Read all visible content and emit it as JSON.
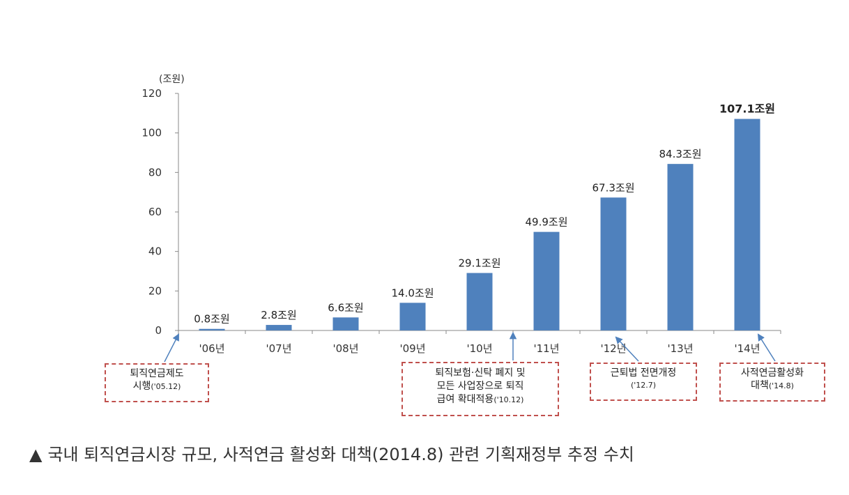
{
  "chart_data": {
    "type": "bar",
    "unit_label": "(조원)",
    "categories": [
      "'06년",
      "'07년",
      "'08년",
      "'09년",
      "'10년",
      "'11년",
      "'12년",
      "'13년",
      "'14년"
    ],
    "values": [
      0.8,
      2.8,
      6.6,
      14.0,
      29.1,
      49.9,
      67.3,
      84.3,
      107.1
    ],
    "data_labels": [
      "0.8조원",
      "2.8조원",
      "6.6조원",
      "14.0조원",
      "29.1조원",
      "49.9조원",
      "67.3조원",
      "84.3조원",
      "107.1조원"
    ],
    "yticks": [
      0,
      20,
      40,
      60,
      80,
      100,
      120
    ],
    "ylim": [
      0,
      120
    ],
    "bar_color": "#4f81bd",
    "annotations": [
      {
        "line1": "퇴직연금제도",
        "line2": "시행",
        "date": "('05.12)"
      },
      {
        "line1": "퇴직보험·신탁 폐지 및",
        "line2": "모든 사업장으로 퇴직",
        "line3": "급여 확대적용",
        "date": "('10.12)"
      },
      {
        "line1": "근퇴법 전면개정",
        "date": "('12.7)"
      },
      {
        "line1": "사적연금활성화",
        "line2": "대책",
        "date": "('14.8)"
      }
    ]
  },
  "caption": {
    "triangle": "▲",
    "text": "국내 퇴직연금시장 규모, 사적연금 활성화 대책(2014.8) 관련 기획재정부 추정 수치"
  },
  "colors": {
    "annotation_border": "#c0504d",
    "arrow": "#4f81bd"
  }
}
